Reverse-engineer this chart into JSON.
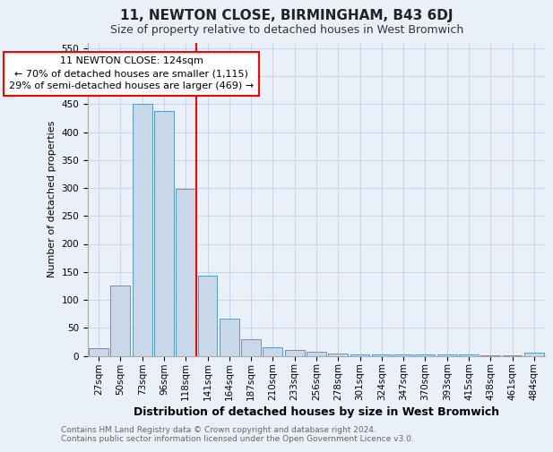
{
  "title": "11, NEWTON CLOSE, BIRMINGHAM, B43 6DJ",
  "subtitle": "Size of property relative to detached houses in West Bromwich",
  "xlabel": "Distribution of detached houses by size in West Bromwich",
  "ylabel": "Number of detached properties",
  "categories": [
    "27sqm",
    "50sqm",
    "73sqm",
    "96sqm",
    "118sqm",
    "141sqm",
    "164sqm",
    "187sqm",
    "210sqm",
    "233sqm",
    "256sqm",
    "278sqm",
    "301sqm",
    "324sqm",
    "347sqm",
    "370sqm",
    "393sqm",
    "415sqm",
    "438sqm",
    "461sqm",
    "484sqm"
  ],
  "values": [
    14,
    125,
    450,
    438,
    298,
    144,
    67,
    29,
    15,
    10,
    7,
    4,
    3,
    2,
    2,
    2,
    2,
    2,
    1,
    1,
    5
  ],
  "bar_color": "#c8d8e8",
  "bar_edge_color": "#5599cc",
  "grid_color": "#c8d8e8",
  "vline_x": 4.5,
  "vline_color": "red",
  "annotation_text": "11 NEWTON CLOSE: 124sqm\n← 70% of detached houses are smaller (1,115)\n29% of semi-detached houses are larger (469) →",
  "annotation_box_color": "white",
  "annotation_box_edge_color": "red",
  "ylim": [
    0,
    560
  ],
  "yticks": [
    0,
    50,
    100,
    150,
    200,
    250,
    300,
    350,
    400,
    450,
    500,
    550
  ],
  "footnote": "Contains HM Land Registry data © Crown copyright and database right 2024.\nContains public sector information licensed under the Open Government Licence v3.0.",
  "background_color": "#eaf0f8",
  "title_fontsize": 11,
  "subtitle_fontsize": 9,
  "ylabel_fontsize": 8,
  "xlabel_fontsize": 9,
  "annotation_fontsize": 8,
  "footnote_fontsize": 6.5,
  "tick_fontsize": 7.5
}
